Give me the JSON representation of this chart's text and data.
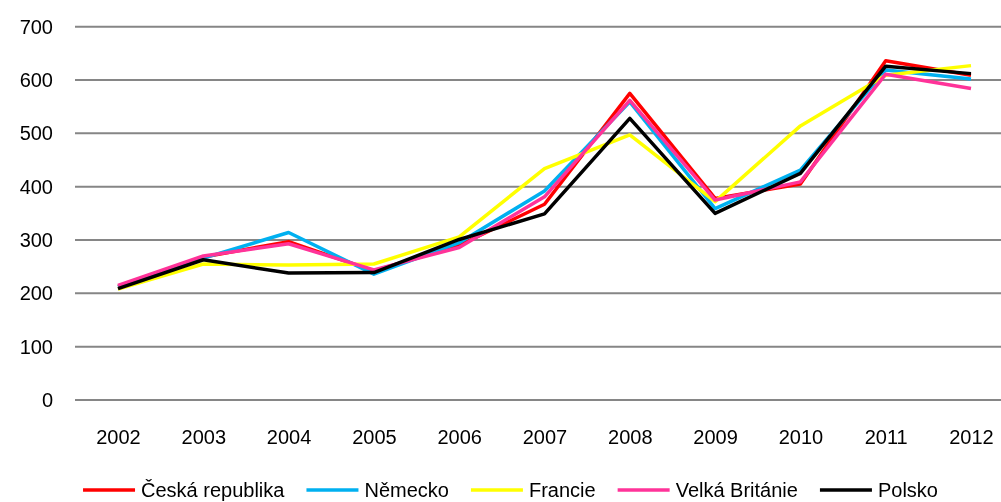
{
  "chart_data": {
    "type": "line",
    "categories": [
      "2002",
      "2003",
      "2004",
      "2005",
      "2006",
      "2007",
      "2008",
      "2009",
      "2010",
      "2011",
      "2012"
    ],
    "series": [
      {
        "name": "Česká republika",
        "color": "#ff0000",
        "values": [
          213,
          268,
          297,
          242,
          290,
          367,
          575,
          378,
          405,
          636,
          609
        ]
      },
      {
        "name": "Německo",
        "color": "#00b0f0",
        "values": [
          212,
          266,
          314,
          236,
          295,
          392,
          559,
          359,
          431,
          619,
          602
        ]
      },
      {
        "name": "Francie",
        "color": "#ffff00",
        "values": [
          208,
          255,
          253,
          255,
          306,
          434,
          497,
          372,
          514,
          609,
          627
        ]
      },
      {
        "name": "Velká Británie",
        "color": "#ff3399",
        "values": [
          215,
          270,
          293,
          244,
          286,
          381,
          562,
          375,
          409,
          611,
          584
        ]
      },
      {
        "name": "Polsko",
        "color": "#000000",
        "values": [
          209,
          263,
          238,
          239,
          301,
          349,
          528,
          350,
          425,
          626,
          612
        ]
      }
    ],
    "ylim": [
      0,
      700
    ],
    "yticks": [
      0,
      100,
      200,
      300,
      400,
      500,
      600,
      700
    ],
    "grid": "y",
    "legend": "bottom"
  }
}
